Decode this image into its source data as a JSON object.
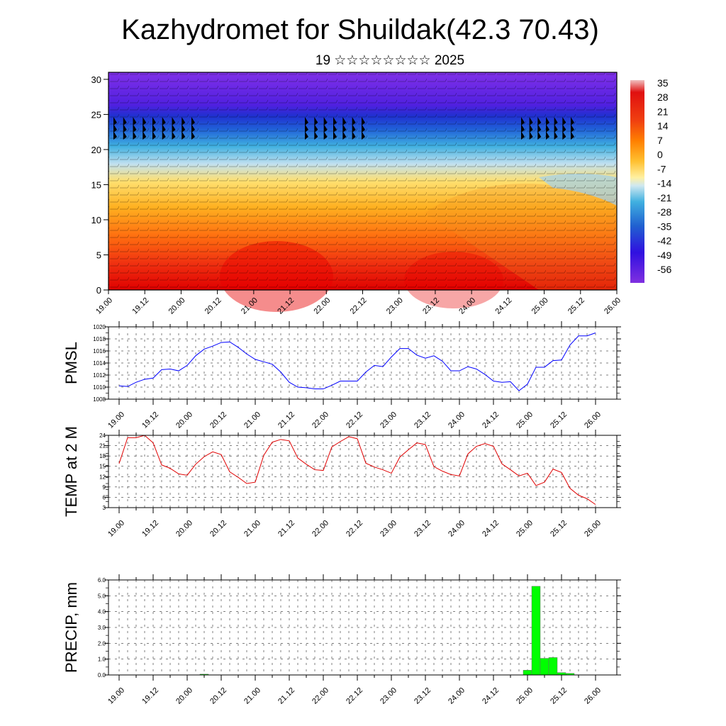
{
  "header": {
    "title": "Kazhydromet for Shuildak(42.3 70.43)",
    "subtitle": "19 ☆☆☆☆☆☆☆☆ 2025"
  },
  "time_ticks": [
    "19.00",
    "19.12",
    "20.00",
    "20.12",
    "21.00",
    "21.12",
    "22.00",
    "22.12",
    "23.00",
    "23.12",
    "24.00",
    "24.12",
    "25.00",
    "25.12",
    "26.00"
  ],
  "colorbar": {
    "labels": [
      "35",
      "28",
      "21",
      "14",
      "7",
      "0",
      "-7",
      "-14",
      "-21",
      "-28",
      "-35",
      "-42",
      "-49",
      "-56"
    ],
    "colors": [
      "#f0a0a0",
      "#e01010",
      "#f04010",
      "#ff8000",
      "#ffb020",
      "#ffd850",
      "#fff0a0",
      "#c0e0f0",
      "#40b0e0",
      "#2080e0",
      "#2040d0",
      "#3010e0",
      "#6020e0",
      "#8030e0"
    ]
  },
  "chart_data": [
    {
      "type": "heatmap",
      "title": "",
      "ylabel": "",
      "x": [
        "19.00",
        "19.12",
        "20.00",
        "20.12",
        "21.00",
        "21.12",
        "22.00",
        "22.12",
        "23.00",
        "23.12",
        "24.00",
        "24.12",
        "25.00",
        "25.12",
        "26.00"
      ],
      "y_ticks": [
        0,
        5,
        10,
        15,
        20,
        25,
        30
      ],
      "ylim": [
        0,
        31
      ],
      "description_values": "Temperature field with wind barbs; warm (14 to 35) near surface, cold (-56) above 25"
    },
    {
      "type": "line",
      "ylabel": "PMSL",
      "ylim": [
        1008,
        1020
      ],
      "y_ticks": [
        1008,
        1010,
        1012,
        1014,
        1016,
        1018,
        1020
      ],
      "color": "#0000ff",
      "values": [
        1010.2,
        1010.1,
        1010.8,
        1011.3,
        1011.5,
        1012.9,
        1013.0,
        1012.7,
        1013.6,
        1015.2,
        1016.3,
        1016.8,
        1017.4,
        1017.5,
        1016.6,
        1015.5,
        1014.6,
        1014.2,
        1013.8,
        1012.5,
        1010.8,
        1010.0,
        1009.9,
        1009.7,
        1009.7,
        1010.3,
        1011.0,
        1011.0,
        1011.0,
        1012.5,
        1013.6,
        1013.4,
        1015.0,
        1016.4,
        1016.4,
        1015.3,
        1014.8,
        1015.2,
        1014.3,
        1012.7,
        1012.7,
        1013.4,
        1013.0,
        1012.1,
        1011.0,
        1010.8,
        1010.9,
        1009.4,
        1010.5,
        1013.3,
        1013.3,
        1014.4,
        1014.5,
        1017.0,
        1018.5,
        1018.5,
        1019.0
      ]
    },
    {
      "type": "line",
      "ylabel": "TEMP at 2 M",
      "ylim": [
        3,
        24
      ],
      "y_ticks": [
        3,
        6,
        9,
        12,
        15,
        18,
        21,
        24
      ],
      "color": "#e00000",
      "values": [
        15.8,
        23.3,
        23.3,
        24.0,
        21.8,
        15.4,
        14.4,
        12.8,
        12.4,
        15.6,
        17.8,
        19.2,
        18.4,
        13.4,
        11.8,
        10.0,
        10.4,
        18.2,
        22.0,
        22.8,
        22.4,
        17.4,
        15.6,
        14.0,
        13.8,
        20.6,
        22.2,
        23.6,
        23.0,
        15.9,
        14.8,
        14.0,
        13.0,
        17.7,
        19.8,
        21.8,
        21.3,
        14.9,
        13.6,
        12.6,
        12.2,
        18.6,
        20.8,
        21.6,
        20.8,
        15.7,
        14.0,
        12.2,
        13.0,
        9.4,
        10.4,
        14.2,
        13.2,
        8.6,
        6.6,
        5.6,
        3.9
      ]
    },
    {
      "type": "bar",
      "ylabel": "PRECIP, mm",
      "ylim": [
        0,
        6
      ],
      "y_ticks": [
        "0.0",
        "1.0",
        "2.0",
        "3.0",
        "4.0",
        "5.0",
        "6.0"
      ],
      "color": "#00ff00",
      "values": [
        0,
        0,
        0,
        0,
        0,
        0,
        0,
        0,
        0,
        0,
        0.05,
        0,
        0,
        0,
        0,
        0,
        0,
        0,
        0,
        0,
        0,
        0,
        0,
        0,
        0,
        0,
        0,
        0,
        0,
        0,
        0,
        0,
        0,
        0,
        0,
        0,
        0,
        0,
        0,
        0,
        0,
        0,
        0,
        0,
        0,
        0,
        0,
        0,
        0.3,
        5.6,
        1.05,
        1.1,
        0.15,
        0.1,
        0,
        0,
        0
      ]
    }
  ]
}
